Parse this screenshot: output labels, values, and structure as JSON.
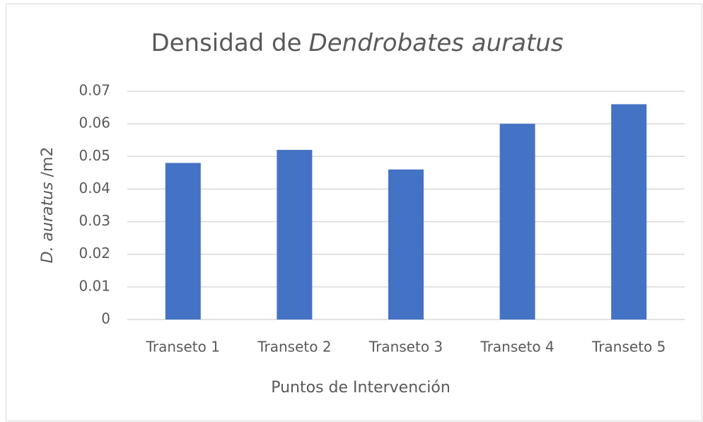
{
  "chart_data": {
    "type": "bar",
    "title": [
      "Densidad de",
      "Dendrobates auratus"
    ],
    "y_label": [
      "D. auratus",
      "/m2"
    ],
    "x_label": "Puntos de Intervención",
    "categories": [
      "Transeto 1",
      "Transeto 2",
      "Transeto 3",
      "Transeto 4",
      "Transeto 5"
    ],
    "values": [
      0.048,
      0.052,
      0.046,
      0.06,
      0.066
    ],
    "color": "#4472c4",
    "ylim": [
      0,
      0.07
    ],
    "yticks": [
      0,
      0.01,
      0.02,
      0.03,
      0.04,
      0.05,
      0.06,
      0.07
    ],
    "grid": true
  }
}
